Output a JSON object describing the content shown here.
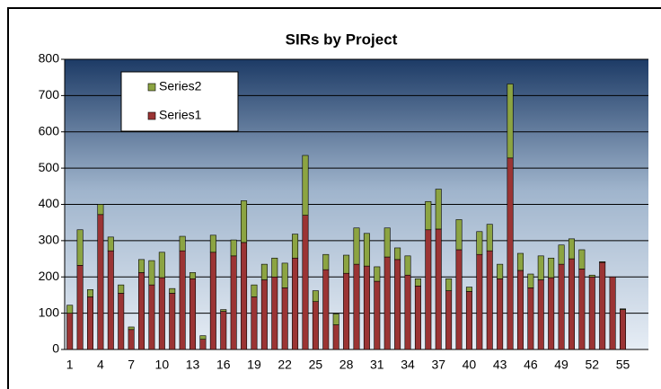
{
  "chart_data": {
    "type": "stacked_bar",
    "title": "SIRs by Project",
    "categories": [
      1,
      null,
      null,
      4,
      null,
      null,
      7,
      null,
      null,
      10,
      null,
      null,
      13,
      null,
      null,
      16,
      null,
      null,
      19,
      null,
      null,
      22,
      null,
      null,
      25,
      null,
      null,
      28,
      null,
      null,
      31,
      null,
      null,
      34,
      null,
      null,
      37,
      null,
      null,
      40,
      null,
      null,
      43,
      null,
      null,
      46,
      null,
      null,
      49,
      null,
      null,
      52,
      null,
      null,
      55,
      null,
      null
    ],
    "series": [
      {
        "name": "Series1",
        "color": "#9b3434",
        "values": [
          100,
          232,
          145,
          372,
          272,
          155,
          55,
          212,
          178,
          198,
          155,
          272,
          195,
          28,
          268,
          105,
          258,
          295,
          145,
          192,
          200,
          170,
          252,
          370,
          132,
          220,
          68,
          210,
          235,
          230,
          188,
          255,
          248,
          205,
          175,
          330,
          332,
          162,
          275,
          160,
          262,
          272,
          195,
          528,
          218,
          170,
          192,
          198,
          235,
          250,
          222,
          200,
          240,
          200,
          110,
          null,
          null
        ]
      },
      {
        "name": "Series2",
        "color": "#8ca442",
        "values": [
          22,
          98,
          20,
          28,
          38,
          23,
          7,
          36,
          67,
          70,
          13,
          40,
          17,
          10,
          47,
          5,
          44,
          115,
          33,
          43,
          52,
          68,
          66,
          165,
          30,
          42,
          30,
          50,
          100,
          90,
          40,
          80,
          32,
          53,
          20,
          78,
          110,
          33,
          83,
          12,
          63,
          73,
          40,
          204,
          47,
          38,
          66,
          54,
          53,
          55,
          53,
          5,
          2,
          0,
          2,
          null,
          null
        ]
      }
    ],
    "ylim": [
      0,
      800
    ],
    "yticks": [
      0,
      100,
      200,
      300,
      400,
      500,
      600,
      700,
      800
    ],
    "grid": true
  }
}
